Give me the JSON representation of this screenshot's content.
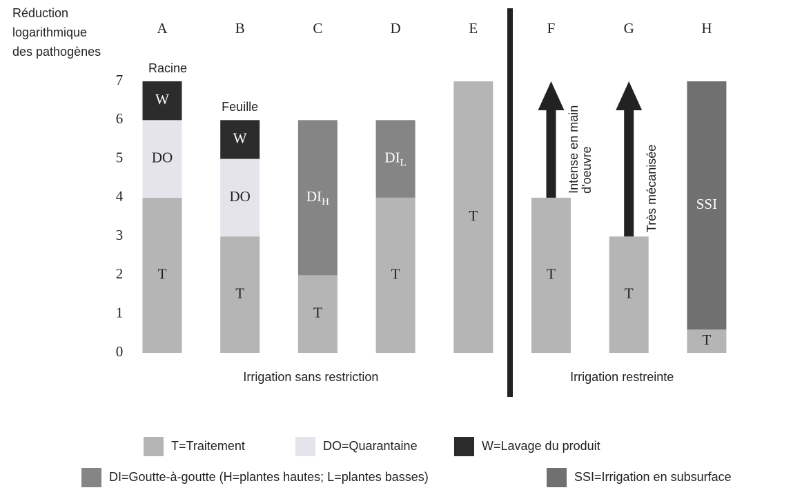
{
  "chart_data": {
    "type": "stacked_bar",
    "y_label": [
      "Réduction",
      "logarithmique",
      "des pathogènes"
    ],
    "categories": [
      "A",
      "B",
      "C",
      "D",
      "E",
      "F",
      "G",
      "H"
    ],
    "ylim": [
      0,
      7
    ],
    "yticks": [
      0,
      1,
      2,
      3,
      4,
      5,
      6,
      7
    ],
    "series": [
      {
        "name": "T=Traitement",
        "label": "T",
        "color": "#b5b5b5",
        "label_color": "#222",
        "values": [
          4,
          3,
          2,
          4,
          7,
          4,
          3,
          0.6
        ]
      },
      {
        "name": "DO=Quarantaine",
        "label": "DO",
        "color": "#e4e4ea",
        "label_color": "#222",
        "values": [
          2,
          2,
          null,
          null,
          null,
          null,
          null,
          null
        ]
      },
      {
        "name": "W=Lavage du produit",
        "label": "W",
        "color": "#2c2c2c",
        "label_color": "#fff",
        "values": [
          1,
          1,
          null,
          null,
          null,
          null,
          null,
          null
        ]
      },
      {
        "name": "DI=Goutte-à-goutte (H=plantes hautes; L=plantes basses)",
        "label": "DI",
        "sub_labels": [
          null,
          null,
          "H",
          "L",
          null,
          null,
          null,
          null
        ],
        "color": "#858585",
        "label_color": "#fff",
        "values": [
          null,
          null,
          4,
          2,
          null,
          null,
          null,
          null
        ]
      },
      {
        "name": "SSI=Irrigation en subsurface",
        "label": "SSI",
        "color": "#707070",
        "label_color": "#fff",
        "values": [
          null,
          null,
          null,
          null,
          null,
          null,
          null,
          6.4
        ]
      }
    ],
    "top_notes": [
      "Racine",
      "Feuille",
      null,
      null,
      null,
      null,
      null,
      null
    ],
    "arrows": {
      "from": [
        null,
        null,
        null,
        null,
        null,
        4,
        3,
        null
      ],
      "to": [
        null,
        null,
        null,
        null,
        null,
        7,
        7,
        null
      ],
      "labels": [
        null,
        null,
        null,
        null,
        null,
        [
          "Intense en main",
          "d'oeuvre"
        ],
        [
          "Très mécanisée"
        ],
        null
      ]
    },
    "groups": [
      {
        "label": "Irrigation sans restriction",
        "span": [
          "A",
          "E"
        ]
      },
      {
        "label": "Irrigation restreinte",
        "span": [
          "F",
          "H"
        ]
      }
    ]
  }
}
